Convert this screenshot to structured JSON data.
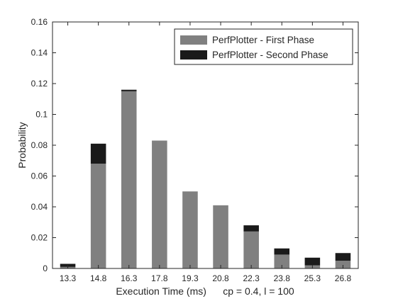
{
  "chart_data": {
    "type": "bar",
    "stacked": true,
    "categories": [
      "13.3",
      "14.8",
      "16.3",
      "17.8",
      "19.3",
      "20.8",
      "22.3",
      "23.8",
      "25.3",
      "26.8"
    ],
    "series": [
      {
        "name": "PerfPlotter - First Phase",
        "color": "#808080",
        "values": [
          0.001,
          0.068,
          0.115,
          0.083,
          0.05,
          0.041,
          0.024,
          0.009,
          0.002,
          0.005
        ]
      },
      {
        "name": "PerfPlotter - Second Phase",
        "color": "#1a1a1a",
        "values": [
          0.002,
          0.013,
          0.001,
          0.0,
          0.0,
          0.0,
          0.004,
          0.004,
          0.005,
          0.005
        ]
      }
    ],
    "xlabel": "Execution Time (ms)      cp = 0.4, l = 100",
    "ylabel": "Probability",
    "ylim": [
      0,
      0.16
    ],
    "yticks": [
      "0",
      "0.02",
      "0.04",
      "0.06",
      "0.08",
      "0.1",
      "0.12",
      "0.14",
      "0.16"
    ],
    "grid": false,
    "legend_position": "top-right"
  }
}
